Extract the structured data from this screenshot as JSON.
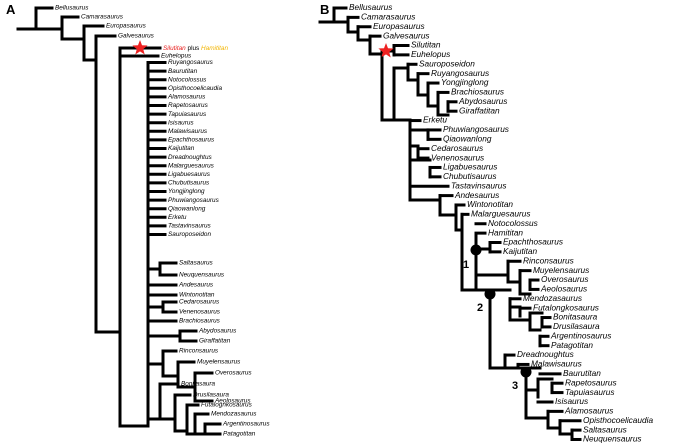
{
  "colors": {
    "highlight_red": "#e8201f",
    "highlight_yellow": "#f2b400",
    "star": "#ee2222",
    "line": "#000000"
  },
  "icons": {
    "star": "star-icon",
    "node": "filled-circle-node-icon"
  },
  "panel_a": {
    "letter": "A",
    "star_label": {
      "part1": "Silutitan",
      "part2": " plus ",
      "part3": "Hamititan"
    },
    "taxa": [
      "Bellusaurus",
      "Camarasaurus",
      "Europasaurus",
      "Galvesaurus",
      "Euhelopus",
      "Ruyangosaurus",
      "Baurutitan",
      "Notocolossus",
      "Opisthocoelicaudia",
      "Alamosaurus",
      "Rapetosaurus",
      "Tapuiasaurus",
      "Isisaurus",
      "Malawisaurus",
      "Epachthosaurus",
      "Kaijutitan",
      "Dreadnoughtus",
      "Malarguesaurus",
      "Ligabuesaurus",
      "Chubutisaurus",
      "Yongjinglong",
      "Phuwiangosaurus",
      "Qiaowanlong",
      "Erketu",
      "Tastavinsaurus",
      "Sauroposeidon",
      "Saltasaurus",
      "Neuquensaurus",
      "Andesaurus",
      "Wintonotitan",
      "Cedarosaurus",
      "Venenosaurus",
      "Brachiosaurus",
      "Abydosaurus",
      "Giraffatitan",
      "Rinconsaurus",
      "Muyelensaurus",
      "Overosaurus",
      "Aeolosaurus",
      "Bonitasaura",
      "Drusilasaura",
      "Futalognkosaurus",
      "Mendozasaurus",
      "Argentinosaurus",
      "Patagotitan"
    ]
  },
  "panel_b": {
    "letter": "B",
    "taxa": [
      "Bellusaurus",
      "Camarasaurus",
      "Europasaurus",
      "Galvesaurus",
      "Silutitan",
      "Euhelopus",
      "Sauroposeidon",
      "Ruyangosaurus",
      "Yongjinglong",
      "Brachiosaurus",
      "Abydosaurus",
      "Giraffatitan",
      "Erketu",
      "Phuwiangosaurus",
      "Qiaowanlong",
      "Cedarosaurus",
      "Venenosaurus",
      "Ligabuesaurus",
      "Chubutisaurus",
      "Tastavinsaurus",
      "Andesaurus",
      "Wintonotitan",
      "Malarguesaurus",
      "Notocolossus",
      "Hamititan",
      "Epachthosaurus",
      "Kaijutitan",
      "Rinconsaurus",
      "Muyelensaurus",
      "Overosaurus",
      "Aeolosaurus",
      "Mendozasaurus",
      "Futalongkosaurus",
      "Bonitasaura",
      "Drusilasaura",
      "Argentinosaurus",
      "Patagotitan",
      "Dreadnoughtus",
      "Malawisaurus",
      "Baurutitan",
      "Rapetosaurus",
      "Tapuiasaurus",
      "Isisaurus",
      "Alamosaurus",
      "Opisthocoelicaudia",
      "Saltasaurus",
      "Neuquensaurus"
    ],
    "red_taxon_index": 4,
    "yellow_taxon_index": 24,
    "node_labels": [
      "1",
      "2",
      "3"
    ]
  }
}
